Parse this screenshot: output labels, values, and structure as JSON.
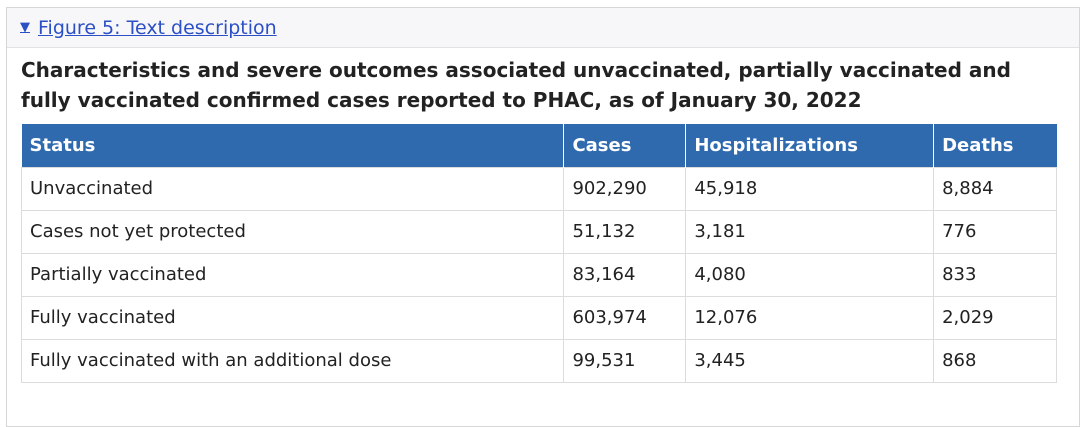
{
  "details": {
    "toggle_icon": "triangle-down-icon",
    "toggle_glyph": "▼",
    "summary_label": "Figure 5: Text description"
  },
  "table": {
    "caption": "Characteristics and severe outcomes associated unvaccinated, partially vaccinated and fully vaccinated confirmed cases reported to PHAC, as of January 30, 2022",
    "header_color": "#2f6aae",
    "columns": [
      "Status",
      "Cases",
      "Hospitalizations",
      "Deaths"
    ],
    "rows": [
      {
        "status": "Unvaccinated",
        "cases": "902,290",
        "hospitalizations": "45,918",
        "deaths": "8,884"
      },
      {
        "status": "Cases not yet protected",
        "cases": "51,132",
        "hospitalizations": "3,181",
        "deaths": "776"
      },
      {
        "status": "Partially vaccinated",
        "cases": "83,164",
        "hospitalizations": "4,080",
        "deaths": "833"
      },
      {
        "status": "Fully vaccinated",
        "cases": "603,974",
        "hospitalizations": "12,076",
        "deaths": "2,029"
      },
      {
        "status": "Fully vaccinated with an additional dose",
        "cases": "99,531",
        "hospitalizations": "3,445",
        "deaths": "868"
      }
    ]
  }
}
